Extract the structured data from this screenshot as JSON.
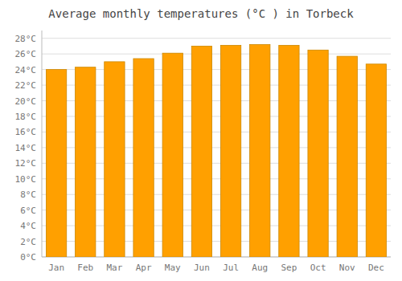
{
  "chart_data": {
    "type": "bar",
    "title": "Average monthly temperatures (°C ) in Torbeck",
    "categories": [
      "Jan",
      "Feb",
      "Mar",
      "Apr",
      "May",
      "Jun",
      "Jul",
      "Aug",
      "Sep",
      "Oct",
      "Nov",
      "Dec"
    ],
    "values": [
      24.0,
      24.3,
      25.0,
      25.4,
      26.1,
      27.0,
      27.1,
      27.2,
      27.1,
      26.5,
      25.7,
      24.7
    ],
    "color": "#FFA000",
    "ylim": [
      0,
      29
    ],
    "yticks": [
      {
        "value": 0,
        "label": "0°C"
      },
      {
        "value": 2,
        "label": "2°C"
      },
      {
        "value": 4,
        "label": "4°C"
      },
      {
        "value": 6,
        "label": "6°C"
      },
      {
        "value": 8,
        "label": "8°C"
      },
      {
        "value": 10,
        "label": "10°C"
      },
      {
        "value": 12,
        "label": "12°C"
      },
      {
        "value": 14,
        "label": "14°C"
      },
      {
        "value": 16,
        "label": "16°C"
      },
      {
        "value": 18,
        "label": "18°C"
      },
      {
        "value": 20,
        "label": "20°C"
      },
      {
        "value": 22,
        "label": "22°C"
      },
      {
        "value": 24,
        "label": "24°C"
      },
      {
        "value": 26,
        "label": "26°C"
      },
      {
        "value": 28,
        "label": "28°C"
      }
    ],
    "grid": true
  }
}
